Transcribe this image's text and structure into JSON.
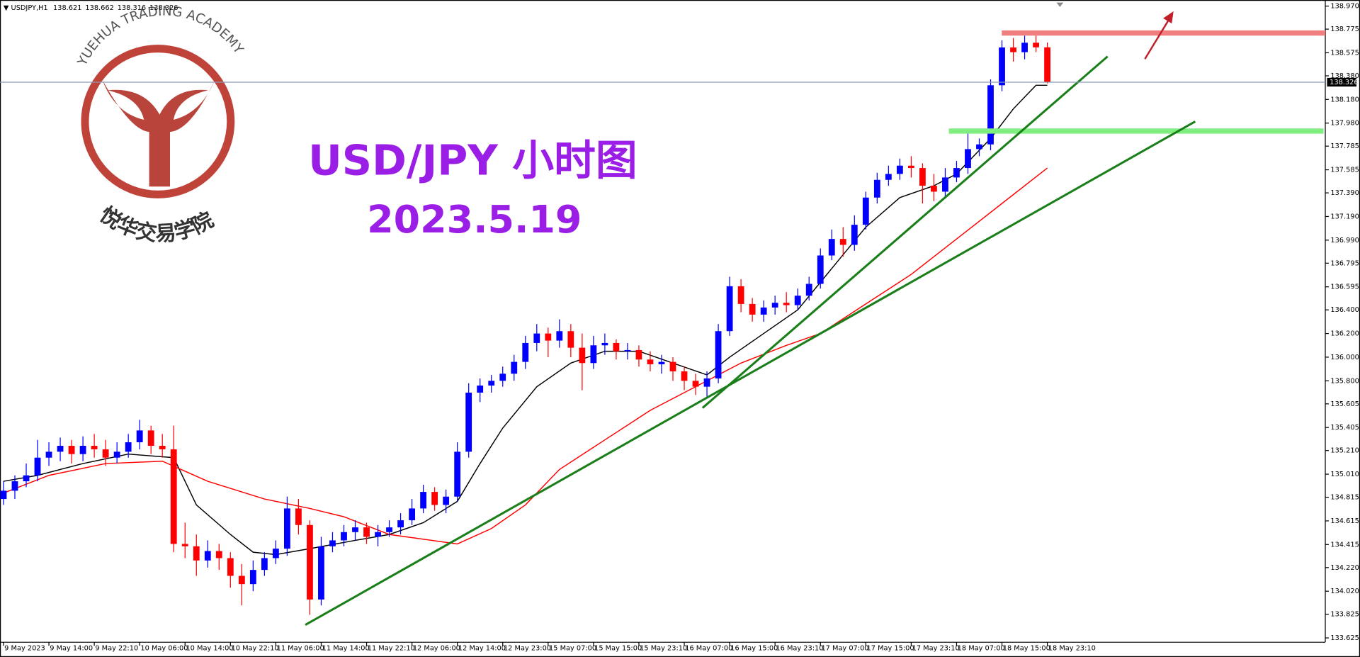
{
  "chart_data": {
    "type": "candlestick",
    "symbol": "USDJPY,H1",
    "title": "USD/JPY 小时图",
    "subtitle": "2023.5.19",
    "logo_text": "YUEHUA TRADING ACADEMY",
    "logo_cn": "悦华交易学院",
    "up_color": "#0000ff",
    "down_color": "#ff0000",
    "open": [
      134.8,
      134.87,
      134.95,
      135.0,
      135.15,
      135.2,
      135.25,
      135.18,
      135.25,
      135.22,
      135.15,
      135.2,
      135.28,
      135.38,
      135.25,
      135.22,
      134.42,
      134.4,
      134.28,
      134.36,
      134.3,
      134.15,
      134.08,
      134.2,
      134.3,
      134.38,
      134.72,
      134.58,
      133.95,
      134.4,
      134.45,
      134.52,
      134.56,
      134.48,
      134.52,
      134.56,
      134.62,
      134.72,
      134.86,
      134.75,
      134.82,
      135.2,
      135.7,
      135.76,
      135.8,
      135.86,
      135.96,
      136.12,
      136.2,
      136.14,
      136.22,
      136.08,
      135.95,
      136.1,
      136.12,
      136.05,
      136.06,
      135.98,
      135.94,
      135.96,
      135.88,
      135.8,
      135.75,
      135.82,
      136.22,
      136.6,
      136.45,
      136.36,
      136.42,
      136.46,
      136.44,
      136.52,
      136.62,
      136.86,
      137.0,
      136.95,
      137.12,
      137.35,
      137.5,
      137.55,
      137.62,
      137.6,
      137.45,
      137.4,
      137.52,
      137.6,
      137.76,
      137.8,
      138.3,
      138.62,
      138.58,
      138.66,
      138.621
    ],
    "high": [
      134.95,
      135.0,
      135.1,
      135.3,
      135.28,
      135.32,
      135.3,
      135.33,
      135.35,
      135.3,
      135.28,
      135.35,
      135.47,
      135.42,
      135.35,
      135.42,
      134.6,
      134.5,
      134.45,
      134.42,
      134.35,
      134.25,
      134.28,
      134.35,
      134.45,
      134.82,
      134.8,
      134.62,
      134.48,
      134.52,
      134.58,
      134.62,
      134.6,
      134.58,
      134.62,
      134.68,
      134.8,
      134.92,
      134.9,
      134.88,
      135.28,
      135.78,
      135.82,
      135.85,
      135.92,
      136.02,
      136.18,
      136.28,
      136.25,
      136.32,
      136.28,
      136.2,
      136.18,
      136.2,
      136.15,
      136.12,
      136.1,
      136.05,
      136.02,
      136.0,
      135.92,
      135.86,
      135.88,
      136.28,
      136.68,
      136.66,
      136.5,
      136.48,
      136.52,
      136.55,
      136.58,
      136.68,
      136.92,
      137.08,
      137.1,
      137.2,
      137.4,
      137.56,
      137.62,
      137.68,
      137.7,
      137.64,
      137.55,
      137.6,
      137.66,
      137.92,
      137.85,
      138.35,
      138.68,
      138.7,
      138.72,
      138.76,
      138.662
    ],
    "low": [
      134.75,
      134.8,
      134.9,
      134.95,
      135.08,
      135.12,
      135.1,
      135.12,
      135.15,
      135.08,
      135.1,
      135.15,
      135.22,
      135.18,
      135.15,
      134.35,
      134.3,
      134.15,
      134.22,
      134.2,
      134.05,
      133.9,
      134.02,
      134.15,
      134.25,
      134.32,
      134.5,
      133.82,
      133.9,
      134.35,
      134.4,
      134.45,
      134.42,
      134.4,
      134.48,
      134.5,
      134.58,
      134.68,
      134.7,
      134.68,
      134.78,
      135.15,
      135.62,
      135.7,
      135.75,
      135.8,
      135.9,
      136.05,
      136.0,
      136.08,
      136.0,
      135.72,
      135.9,
      136.02,
      135.98,
      135.98,
      135.92,
      135.88,
      135.86,
      135.8,
      135.72,
      135.68,
      135.66,
      135.78,
      136.18,
      136.38,
      136.3,
      136.3,
      136.36,
      136.38,
      136.4,
      136.48,
      136.58,
      136.82,
      136.85,
      136.9,
      137.08,
      137.3,
      137.45,
      137.5,
      137.52,
      137.3,
      137.32,
      137.36,
      137.48,
      137.55,
      137.7,
      137.75,
      138.25,
      138.5,
      138.52,
      138.58,
      138.316
    ],
    "close": [
      134.87,
      134.95,
      135.0,
      135.15,
      135.2,
      135.25,
      135.18,
      135.25,
      135.22,
      135.15,
      135.2,
      135.28,
      135.38,
      135.25,
      135.22,
      134.42,
      134.4,
      134.28,
      134.36,
      134.3,
      134.15,
      134.08,
      134.2,
      134.3,
      134.38,
      134.72,
      134.58,
      133.95,
      134.4,
      134.45,
      134.52,
      134.56,
      134.48,
      134.52,
      134.56,
      134.62,
      134.72,
      134.86,
      134.75,
      134.82,
      135.2,
      135.7,
      135.76,
      135.8,
      135.86,
      135.96,
      136.12,
      136.2,
      136.14,
      136.22,
      136.08,
      135.95,
      136.1,
      136.12,
      136.05,
      136.06,
      135.98,
      135.94,
      135.96,
      135.88,
      135.8,
      135.75,
      135.82,
      136.22,
      136.6,
      136.45,
      136.36,
      136.42,
      136.46,
      136.44,
      136.52,
      136.62,
      136.86,
      137.0,
      136.95,
      137.12,
      137.35,
      137.5,
      137.55,
      137.62,
      137.6,
      137.45,
      137.4,
      137.52,
      137.6,
      137.76,
      137.8,
      138.3,
      138.62,
      138.58,
      138.66,
      138.621,
      138.326
    ],
    "series": [
      {
        "color": "#000000",
        "x": [
          0,
          3,
          7,
          11,
          15,
          17,
          20,
          22,
          24,
          27,
          31,
          34,
          37,
          40,
          42,
          44,
          47,
          50,
          53,
          56,
          59,
          62,
          64,
          67,
          70,
          73,
          76,
          79,
          82,
          84,
          87,
          89,
          91,
          92
        ],
        "values": [
          134.95,
          135.0,
          135.1,
          135.18,
          135.15,
          134.75,
          134.5,
          134.35,
          134.33,
          134.38,
          134.45,
          134.5,
          134.6,
          134.78,
          135.1,
          135.4,
          135.75,
          135.95,
          136.05,
          136.05,
          135.95,
          135.85,
          136.0,
          136.2,
          136.4,
          136.75,
          137.1,
          137.35,
          137.45,
          137.55,
          137.85,
          138.1,
          138.3,
          138.3
        ]
      },
      {
        "color": "#ff0000",
        "x": [
          0,
          4,
          9,
          14,
          18,
          23,
          27,
          30,
          34,
          40,
          43,
          46,
          49,
          53,
          57,
          61,
          65,
          69,
          72,
          76,
          80,
          84,
          88,
          92
        ],
        "values": [
          134.85,
          135.0,
          135.1,
          135.12,
          134.95,
          134.8,
          134.72,
          134.65,
          134.5,
          134.42,
          134.55,
          134.75,
          135.05,
          135.3,
          135.55,
          135.75,
          135.95,
          136.1,
          136.2,
          136.45,
          136.7,
          137.0,
          137.3,
          137.6
        ]
      }
    ],
    "current_price": 138.326,
    "xlim": [
      -0.31,
      116.5
    ],
    "ylim": [
      133.625,
      138.97
    ],
    "yticks": [
      {
        "value": 138.97,
        "label": "138.970"
      },
      138.775,
      138.575,
      {
        "value": 138.38,
        "label": "138.380"
      },
      {
        "value": 138.18,
        "label": "138.180"
      },
      {
        "value": 137.98,
        "label": "137.980"
      },
      137.785,
      137.585,
      {
        "value": 137.39,
        "label": "137.390"
      },
      {
        "value": 137.19,
        "label": "137.190"
      },
      {
        "value": 136.99,
        "label": "136.990"
      },
      136.795,
      136.595,
      {
        "value": 136.4,
        "label": "136.400"
      },
      {
        "value": 136.2,
        "label": "136.200"
      },
      {
        "value": 136.0,
        "label": "136.000"
      },
      {
        "value": 135.8,
        "label": "135.800"
      },
      135.605,
      135.405,
      {
        "value": 135.21,
        "label": "135.210"
      },
      {
        "value": 135.01,
        "label": "135.010"
      },
      134.815,
      134.615,
      134.415,
      {
        "value": 134.22,
        "label": "134.220"
      },
      {
        "value": 134.02,
        "label": "134.020"
      },
      133.825,
      133.625
    ],
    "xticks": [
      {
        "value": 0,
        "label": "9 May 2023"
      },
      {
        "value": 4,
        "label": "9 May 14:00"
      },
      {
        "value": 8,
        "label": "9 May 22:10"
      },
      {
        "value": 12,
        "label": "10 May 06:00"
      },
      {
        "value": 16,
        "label": "10 May 14:00"
      },
      {
        "value": 20,
        "label": "10 May 22:10"
      },
      {
        "value": 24,
        "label": "11 May 06:00"
      },
      {
        "value": 28,
        "label": "11 May 14:00"
      },
      {
        "value": 32,
        "label": "11 May 22:10"
      },
      {
        "value": 36,
        "label": "12 May 06:00"
      },
      {
        "value": 40,
        "label": "12 May 14:00"
      },
      {
        "value": 44,
        "label": "12 May 23:00"
      },
      {
        "value": 48,
        "label": "15 May 07:00"
      },
      {
        "value": 52,
        "label": "15 May 15:00"
      },
      {
        "value": 56,
        "label": "15 May 23:10"
      },
      {
        "value": 60,
        "label": "16 May 07:00"
      },
      {
        "value": 64,
        "label": "16 May 15:00"
      },
      {
        "value": 68,
        "label": "16 May 23:10"
      },
      {
        "value": 72,
        "label": "17 May 07:00"
      },
      {
        "value": 76,
        "label": "17 May 15:00"
      },
      {
        "value": 80,
        "label": "17 May 23:10"
      },
      {
        "value": 84,
        "label": "18 May 07:00"
      },
      {
        "value": 88,
        "label": "18 May 15:00"
      },
      {
        "value": 92,
        "label": "18 May 23:10"
      }
    ]
  }
}
